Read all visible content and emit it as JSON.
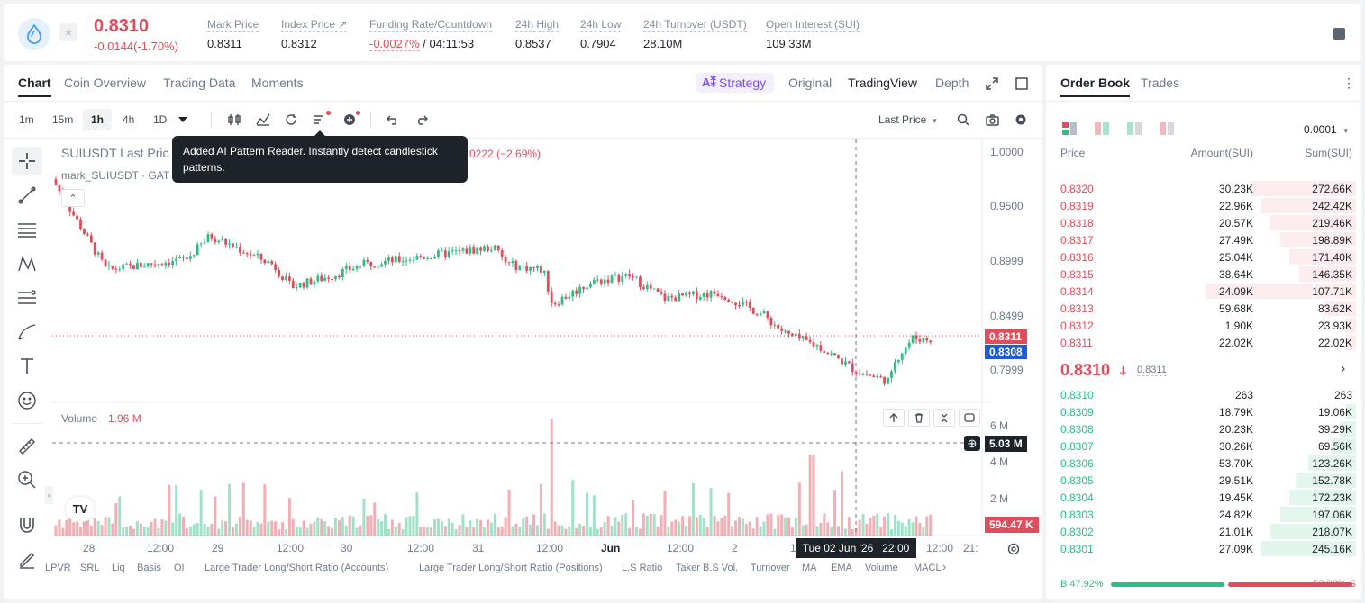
{
  "ticker": {
    "last_price": "0.8310",
    "change": "-0.0144(-1.70%)",
    "stats": [
      {
        "label": "Mark Price",
        "value": "0.8311",
        "left": 0
      },
      {
        "label": "Index Price ↗",
        "value": "0.8312"
      },
      {
        "label": "Funding Rate/Countdown",
        "value_neg": "-0.0027%",
        "value": " / 04:11:53"
      },
      {
        "label": "24h High",
        "value": "0.8537"
      },
      {
        "label": "24h Low",
        "value": "0.7904"
      },
      {
        "label": "24h Turnover (USDT)",
        "value": "28.10M"
      },
      {
        "label": "Open Interest (SUI)",
        "value": "109.33M"
      }
    ]
  },
  "chart_tabs": [
    "Chart",
    "Coin Overview",
    "Trading Data",
    "Moments"
  ],
  "view_tabs": {
    "strategy": "Strategy",
    "original": "Original",
    "tradingview": "TradingView",
    "depth": "Depth"
  },
  "intervals": [
    "1m",
    "15m",
    "1h",
    "4h",
    "1D"
  ],
  "price_type": "Last Price",
  "chart": {
    "legend_title": "SUIUSDT Last Pric",
    "legend_change": "0222 (−2.69%)",
    "legend_mark": "mark_SUIUSDT · GAT",
    "tooltip": "Added AI Pattern Reader. Instantly detect candlestick patterns.",
    "price_ticks": [
      "1.0000",
      "0.9500",
      "0.8999",
      "0.8499",
      "0.7999"
    ],
    "last_tag": "0.8311",
    "mark_tag": "0.8308",
    "volume_label": "Volume",
    "volume_value": "1.96 M",
    "volume_ticks": [
      "6 M",
      "4 M",
      "2 M"
    ],
    "volume_cross": "5.03 M",
    "volume_tag": "594.47 K",
    "time_ticks": [
      "28",
      "12:00",
      "29",
      "12:00",
      "30",
      "12:00",
      "31",
      "12:00",
      "Jun",
      "12:00",
      "2",
      "1",
      "12:00",
      "21:"
    ],
    "crosshair_time": "Tue 02 Jun '26   22:00"
  },
  "chart_data": {
    "type": "candlestick",
    "title": "SUIUSDT Last Price",
    "y_range": [
      0.78,
      1.01
    ],
    "close_start": 0.975,
    "close_end": 0.8311
  },
  "indicators": [
    "LPVR",
    "SRL",
    "Liq",
    "Basis",
    "OI",
    "Large Trader Long/Short Ratio (Accounts)",
    "Large Trader Long/Short Ratio (Positions)",
    "L.S Ratio",
    "Taker B.S Vol.",
    "Turnover",
    "MA",
    "EMA",
    "Volume",
    "MACL"
  ],
  "orderbook": {
    "tabs": [
      "Order Book",
      "Trades"
    ],
    "precision": "0.0001",
    "headers": {
      "price": "Price",
      "amount": "Amount(SUI)",
      "sum": "Sum(SUI)"
    },
    "asks": [
      {
        "price": "0.8320",
        "amount": "30.23K",
        "sum": "272.66K",
        "depth": 0.33,
        "amt_depth": 0
      },
      {
        "price": "0.8319",
        "amount": "22.96K",
        "sum": "242.42K",
        "depth": 0.3,
        "amt_depth": 0
      },
      {
        "price": "0.8318",
        "amount": "20.57K",
        "sum": "219.46K",
        "depth": 0.27,
        "amt_depth": 0
      },
      {
        "price": "0.8317",
        "amount": "27.49K",
        "sum": "198.89K",
        "depth": 0.24,
        "amt_depth": 0
      },
      {
        "price": "0.8316",
        "amount": "25.04K",
        "sum": "171.40K",
        "depth": 0.21,
        "amt_depth": 0
      },
      {
        "price": "0.8315",
        "amount": "38.64K",
        "sum": "146.35K",
        "depth": 0.18,
        "amt_depth": 0
      },
      {
        "price": "0.8314",
        "amount": "24.09K",
        "sum": "107.71K",
        "depth": 0.13,
        "amt_depth": 0.47
      },
      {
        "price": "0.8313",
        "amount": "59.68K",
        "sum": "83.62K",
        "depth": 0.1,
        "amt_depth": 0
      },
      {
        "price": "0.8312",
        "amount": "1.90K",
        "sum": "23.93K",
        "depth": 0.03,
        "amt_depth": 0
      },
      {
        "price": "0.8311",
        "amount": "22.02K",
        "sum": "22.02K",
        "depth": 0.03,
        "amt_depth": 0
      }
    ],
    "mid_price": "0.8310",
    "mid_mark": "0.8311",
    "bids": [
      {
        "price": "0.8310",
        "amount": "263",
        "sum": "263",
        "depth": 0
      },
      {
        "price": "0.8309",
        "amount": "18.79K",
        "sum": "19.06K",
        "depth": 0.03
      },
      {
        "price": "0.8308",
        "amount": "20.23K",
        "sum": "39.29K",
        "depth": 0.05
      },
      {
        "price": "0.8307",
        "amount": "30.26K",
        "sum": "69.56K",
        "depth": 0.08
      },
      {
        "price": "0.8306",
        "amount": "53.70K",
        "sum": "123.26K",
        "depth": 0.15
      },
      {
        "price": "0.8305",
        "amount": "29.51K",
        "sum": "152.78K",
        "depth": 0.19
      },
      {
        "price": "0.8304",
        "amount": "19.45K",
        "sum": "172.23K",
        "depth": 0.21
      },
      {
        "price": "0.8303",
        "amount": "24.82K",
        "sum": "197.06K",
        "depth": 0.24
      },
      {
        "price": "0.8302",
        "amount": "21.01K",
        "sum": "218.07K",
        "depth": 0.27
      },
      {
        "price": "0.8301",
        "amount": "27.09K",
        "sum": "245.16K",
        "depth": 0.3
      }
    ],
    "buy_ratio": "B 47.92%",
    "sell_ratio": "52.08% S",
    "buy_fraction": 0.4792
  },
  "colors": {
    "up": "#2ebd85",
    "down": "#e04e5c",
    "accent": "#1e2329",
    "mark": "#1f5bd6"
  }
}
